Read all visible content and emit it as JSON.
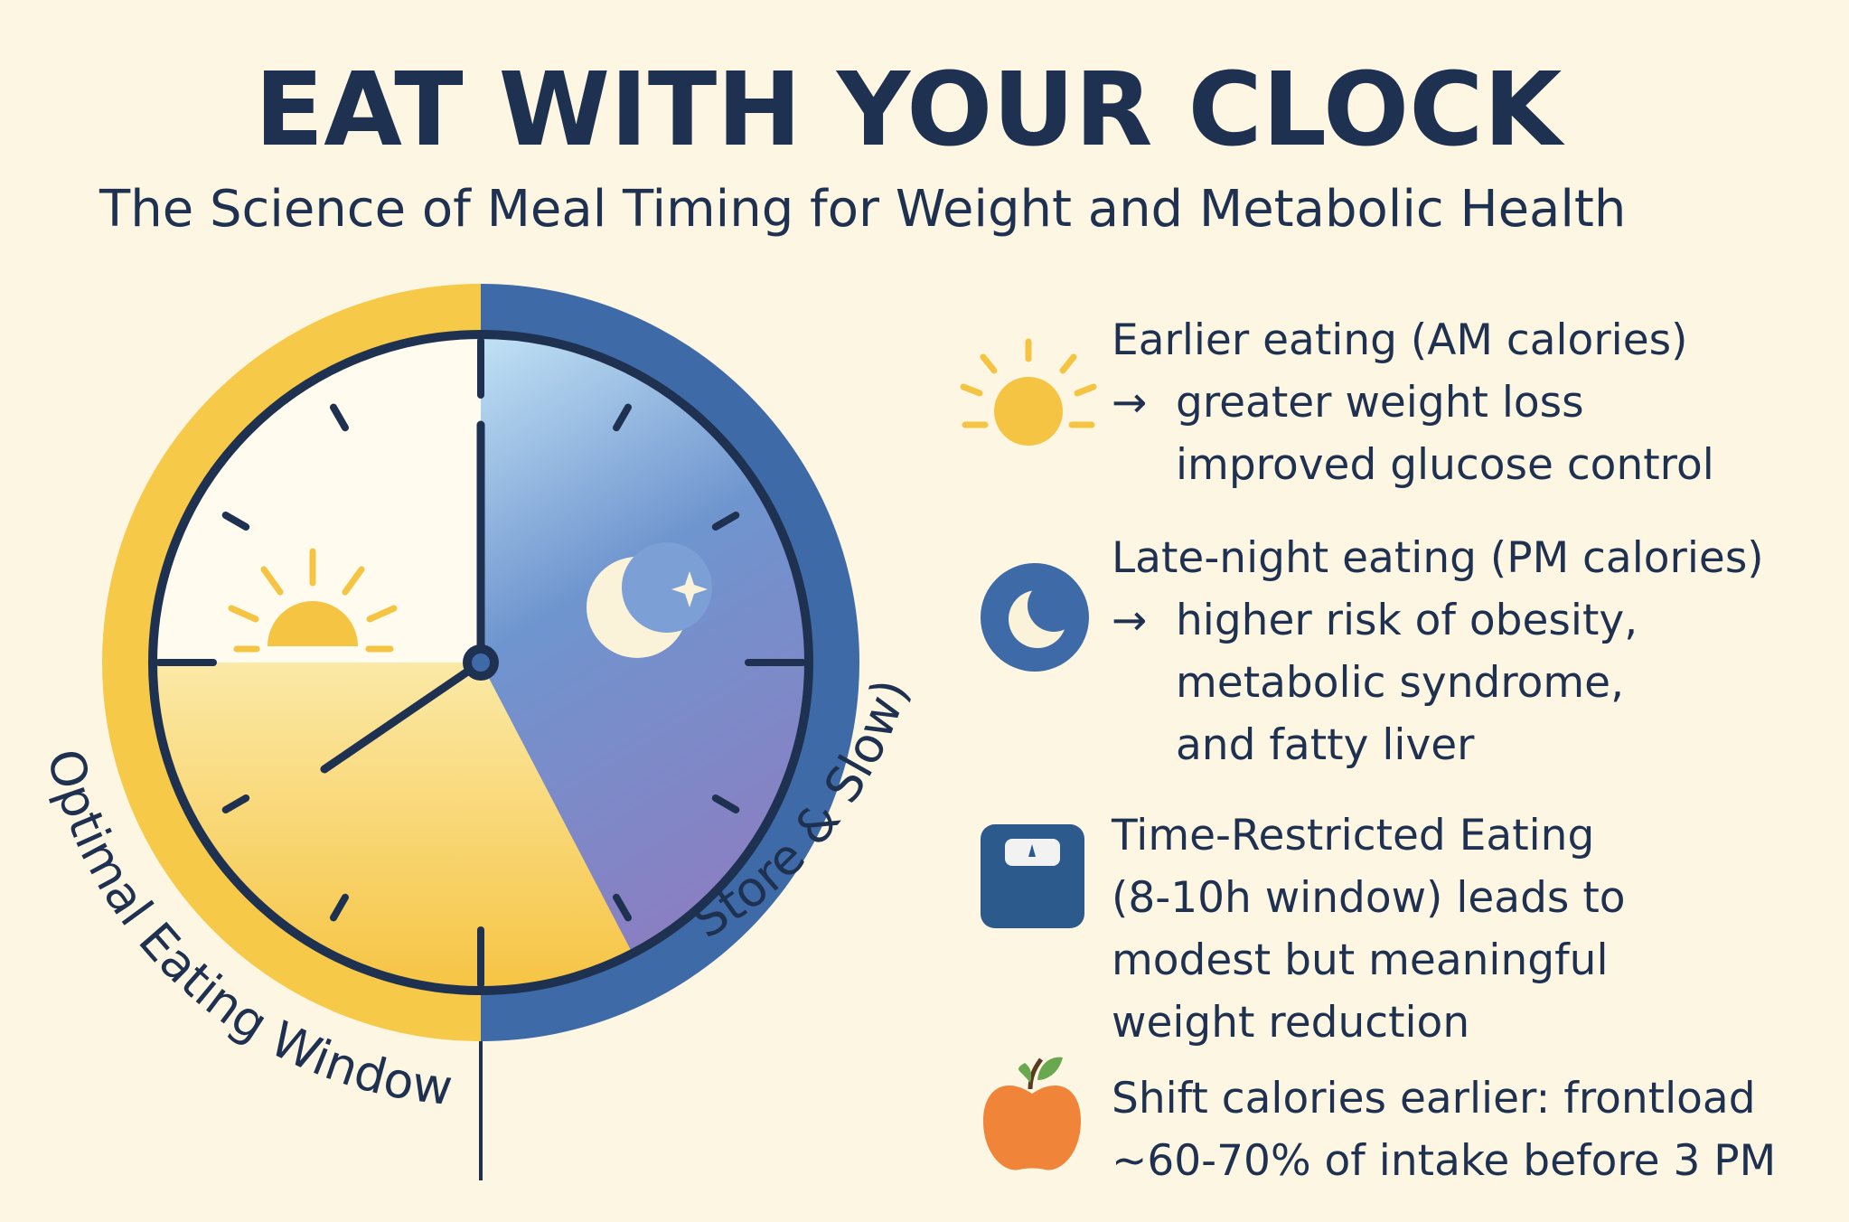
{
  "header": {
    "title": "EAT WITH YOUR CLOCK",
    "subtitle": "The Science of Meal Timing for Weight and Metabolic Health"
  },
  "clock": {
    "left_label": "Optimal Eating Window",
    "right_label": "Store & Slow)"
  },
  "items": [
    {
      "heading": "Earlier eating (AM calories)",
      "arrow": "→",
      "details": [
        "greater weight loss",
        "improved glucose control"
      ]
    },
    {
      "heading": "Late-night eating (PM calories)",
      "arrow": "→",
      "details": [
        "higher risk of obesity,",
        "metabolic syndrome,",
        "and fatty liver"
      ]
    },
    {
      "lines": [
        "Time-Restricted Eating",
        "(8-10h window) leads to",
        "modest but meaningful",
        "weight reduction"
      ]
    },
    {
      "lines": [
        "Shift calories earlier: frontload",
        "~60-70% of intake before 3 PM"
      ]
    }
  ]
}
